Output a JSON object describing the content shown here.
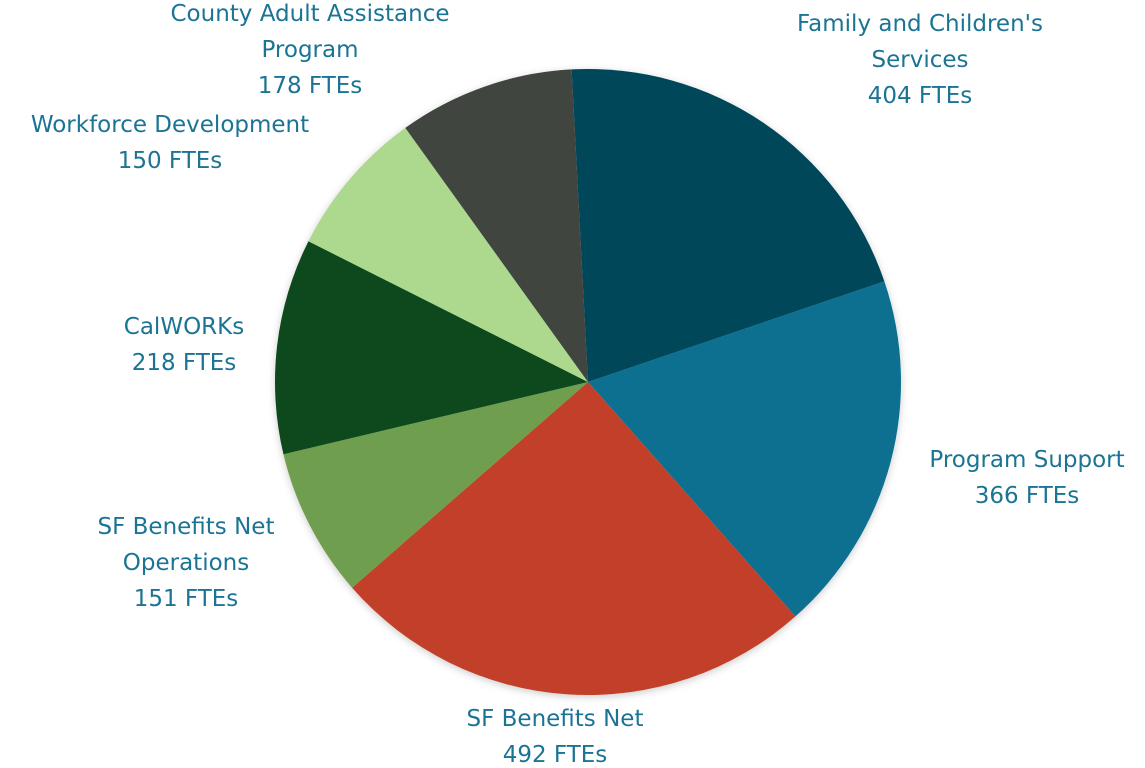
{
  "chart_data": {
    "type": "pie",
    "categories": [
      "Family and Children's Services",
      "Program Support",
      "SF Benefits Net",
      "SF Benefits Net Operations",
      "CalWORKs",
      "Workforce Development",
      "County Adult Assistance Program"
    ],
    "values": [
      404,
      366,
      492,
      151,
      218,
      150,
      178
    ],
    "value_labels": [
      "404 FTEs",
      "366 FTEs",
      "492 FTEs",
      "151 FTEs",
      "218 FTEs",
      "150 FTEs",
      "178 FTEs"
    ],
    "colors": [
      "#03465a",
      "#0a7090",
      "#c2402a",
      "#6f9e4f",
      "#074a1a",
      "#acd98e",
      "#3f4540"
    ],
    "label_color": "#1b7494"
  }
}
